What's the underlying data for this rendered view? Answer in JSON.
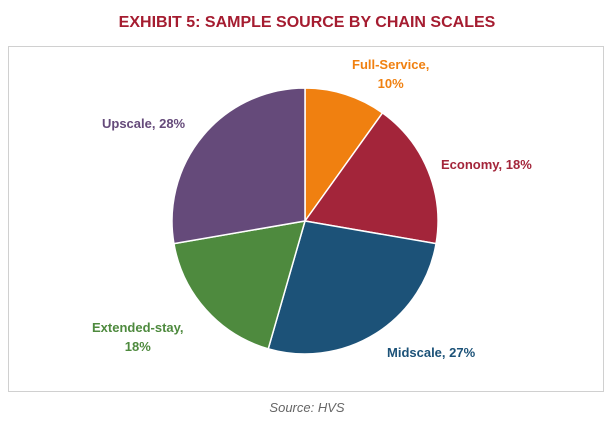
{
  "chart_data": {
    "type": "pie",
    "title": "EXHIBIT 5: SAMPLE SOURCE BY CHAIN SCALES",
    "title_color": "#a51c30",
    "slices": [
      {
        "label": "Full-Service, 10%",
        "value": 10,
        "color": "#f08010"
      },
      {
        "label": "Economy, 18%",
        "value": 18,
        "color": "#a3253a"
      },
      {
        "label": "Midscale, 27%",
        "value": 27,
        "color": "#1c5278"
      },
      {
        "label": "Extended-stay, 18%",
        "value": 18,
        "color": "#4e8a3e"
      },
      {
        "label": "Upscale, 28%",
        "value": 28,
        "color": "#654a7a"
      }
    ],
    "legend": "none"
  },
  "source": "Source: HVS"
}
